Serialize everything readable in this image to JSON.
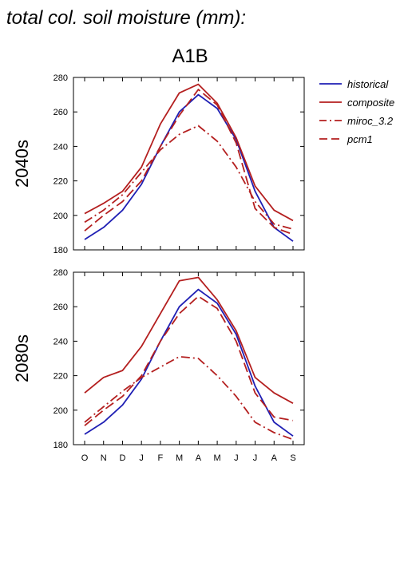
{
  "figure": {
    "title": "total col. soil moisture (mm):",
    "scenario": "A1B"
  },
  "colors": {
    "historical": "#1f1fb4",
    "composite": "#b41f1f",
    "miroc_3.2": "#b41f1f",
    "pcm1": "#b41f1f"
  },
  "chart_data": [
    {
      "type": "line",
      "panel_label": "2040s",
      "categories": [
        "O",
        "N",
        "D",
        "J",
        "F",
        "M",
        "A",
        "M",
        "J",
        "J",
        "A",
        "S"
      ],
      "ylim": [
        180,
        280
      ],
      "yticks": [
        180,
        200,
        220,
        240,
        260,
        280
      ],
      "grid": false,
      "legend_position": "right",
      "series": [
        {
          "name": "historical",
          "style": "solid",
          "values": [
            186,
            193,
            203,
            218,
            240,
            260,
            270,
            262,
            244,
            214,
            193,
            185
          ]
        },
        {
          "name": "composite",
          "style": "solid",
          "values": [
            201,
            207,
            214,
            228,
            253,
            271,
            276,
            265,
            245,
            217,
            203,
            197
          ]
        },
        {
          "name": "miroc_3.2",
          "style": "dashdot",
          "values": [
            196,
            203,
            212,
            225,
            238,
            247,
            252,
            243,
            228,
            208,
            195,
            192
          ]
        },
        {
          "name": "pcm1",
          "style": "dashed",
          "values": [
            191,
            200,
            208,
            220,
            240,
            258,
            273,
            264,
            242,
            204,
            193,
            189
          ]
        }
      ]
    },
    {
      "type": "line",
      "panel_label": "2080s",
      "categories": [
        "O",
        "N",
        "D",
        "J",
        "F",
        "M",
        "A",
        "M",
        "J",
        "J",
        "A",
        "S"
      ],
      "ylim": [
        180,
        280
      ],
      "yticks": [
        180,
        200,
        220,
        240,
        260,
        280
      ],
      "grid": false,
      "series": [
        {
          "name": "historical",
          "style": "solid",
          "values": [
            186,
            193,
            203,
            218,
            240,
            260,
            270,
            262,
            244,
            214,
            193,
            185
          ]
        },
        {
          "name": "composite",
          "style": "solid",
          "values": [
            210,
            219,
            223,
            237,
            256,
            275,
            277,
            264,
            246,
            219,
            210,
            204
          ]
        },
        {
          "name": "miroc_3.2",
          "style": "dashdot",
          "values": [
            193,
            202,
            211,
            219,
            225,
            231,
            230,
            220,
            208,
            193,
            187,
            183
          ]
        },
        {
          "name": "pcm1",
          "style": "dashed",
          "values": [
            191,
            200,
            208,
            220,
            240,
            256,
            266,
            259,
            240,
            210,
            196,
            194
          ]
        }
      ]
    }
  ]
}
